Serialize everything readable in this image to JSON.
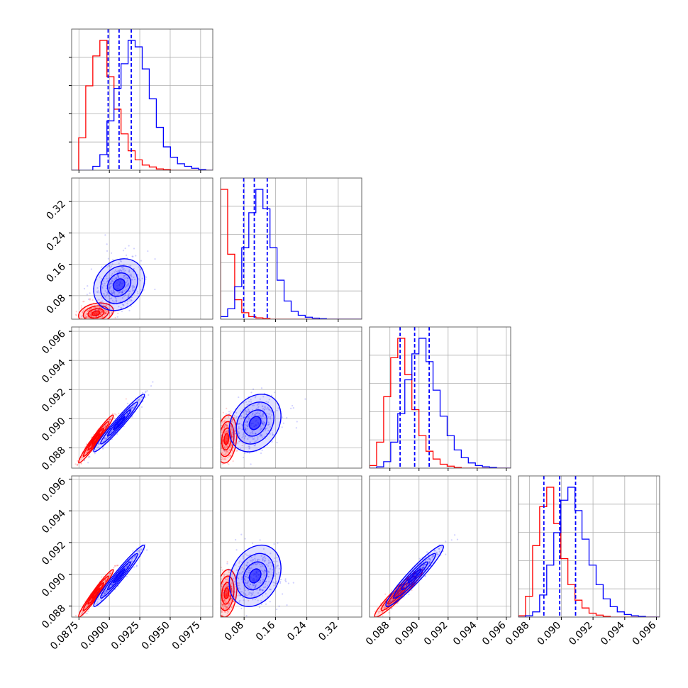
{
  "chart_data": {
    "type": "corner",
    "title": "",
    "parameters": [
      "",
      "",
      "",
      ""
    ],
    "series": [
      {
        "color": "#ff0000",
        "means": [
          0.0889,
          0.035,
          0.0886,
          0.0888
        ],
        "sds": [
          0.00065,
          0.012,
          0.00075,
          0.00068
        ],
        "correlations": [
          [
            1,
            0.25,
            0.97,
            0.97
          ],
          [
            0.25,
            1,
            0.2,
            0.2
          ],
          [
            0.97,
            0.2,
            1,
            0.95
          ],
          [
            0.97,
            0.2,
            0.95,
            1
          ]
        ]
      },
      {
        "color": "#0000ff",
        "means": [
          0.0908,
          0.108,
          0.0897,
          0.0899
        ],
        "sds": [
          0.00095,
          0.03,
          0.0009,
          0.00088
        ],
        "correlations": [
          [
            1,
            0.2,
            0.97,
            0.97
          ],
          [
            0.2,
            1,
            0.25,
            0.25
          ],
          [
            0.97,
            0.25,
            1,
            0.95
          ],
          [
            0.97,
            0.25,
            0.95,
            1
          ]
        ]
      }
    ],
    "quantile_lines": [
      [
        0.0899,
        0.0908,
        0.0918
      ],
      [
        0.079,
        0.106,
        0.139
      ],
      [
        0.0887,
        0.0897,
        0.0907
      ],
      [
        0.0889,
        0.0899,
        0.0909
      ]
    ],
    "diagonal_histograms": [
      {
        "red": [
          0,
          0.25,
          0.65,
          0.88,
          1.0,
          0.72,
          0.47,
          0.28,
          0.15,
          0.08,
          0.04,
          0.025,
          0.01,
          0.005,
          0,
          0,
          0,
          0,
          0,
          0
        ],
        "blue": [
          0,
          0,
          0,
          0.03,
          0.12,
          0.38,
          0.63,
          0.82,
          1.0,
          0.95,
          0.78,
          0.55,
          0.33,
          0.18,
          0.1,
          0.05,
          0.03,
          0.015,
          0.005,
          0
        ]
      },
      {
        "red": [
          1.0,
          0.5,
          0.15,
          0.05,
          0.02,
          0.01,
          0.005,
          0,
          0,
          0,
          0,
          0,
          0,
          0,
          0,
          0,
          0,
          0,
          0,
          0
        ],
        "blue": [
          0.02,
          0.08,
          0.25,
          0.55,
          0.82,
          1.0,
          0.85,
          0.55,
          0.3,
          0.14,
          0.06,
          0.03,
          0.015,
          0.008,
          0.004,
          0,
          0,
          0,
          0,
          0
        ]
      },
      {
        "red": [
          0.02,
          0.2,
          0.55,
          0.85,
          1.0,
          0.72,
          0.45,
          0.25,
          0.13,
          0.07,
          0.03,
          0.015,
          0.005,
          0,
          0,
          0,
          0,
          0,
          0,
          0
        ],
        "blue": [
          0,
          0.01,
          0.05,
          0.2,
          0.42,
          0.68,
          0.88,
          1.0,
          0.82,
          0.6,
          0.4,
          0.25,
          0.14,
          0.08,
          0.04,
          0.02,
          0.01,
          0.005,
          0,
          0
        ]
      },
      {
        "red": [
          0.01,
          0.16,
          0.55,
          0.85,
          1.0,
          0.72,
          0.45,
          0.25,
          0.13,
          0.07,
          0.03,
          0.015,
          0.005,
          0,
          0,
          0,
          0,
          0,
          0,
          0
        ],
        "blue": [
          0,
          0.01,
          0.04,
          0.17,
          0.4,
          0.65,
          0.9,
          1.0,
          0.82,
          0.6,
          0.4,
          0.25,
          0.14,
          0.08,
          0.04,
          0.02,
          0.01,
          0.005,
          0,
          0
        ]
      }
    ],
    "axis_ranges": [
      [
        0.0869,
        0.0985
      ],
      [
        0.02,
        0.38
      ],
      [
        0.0866,
        0.0963
      ],
      [
        0.0873,
        0.0962
      ]
    ],
    "ticks": [
      {
        "values": [
          0.0875,
          0.09,
          0.0925,
          0.095,
          0.0975
        ],
        "labels": [
          "0.0875",
          "0.0900",
          "0.0925",
          "0.0950",
          "0.0975"
        ]
      },
      {
        "values": [
          0.08,
          0.16,
          0.24,
          0.32
        ],
        "labels": [
          "0.08",
          "0.16",
          "0.24",
          "0.32"
        ]
      },
      {
        "values": [
          0.088,
          0.09,
          0.092,
          0.094,
          0.096
        ],
        "labels": [
          "0.088",
          "0.090",
          "0.092",
          "0.094",
          "0.096"
        ]
      },
      {
        "values": [
          0.088,
          0.09,
          0.092,
          0.094,
          0.096
        ],
        "labels": [
          "0.088",
          "0.090",
          "0.092",
          "0.094",
          "0.096"
        ]
      }
    ],
    "grid": true,
    "legend": "none"
  }
}
